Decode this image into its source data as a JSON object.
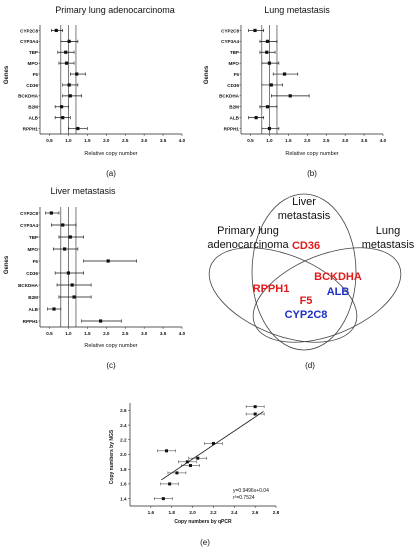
{
  "panel_letters": {
    "a": "(a)",
    "b": "(b)",
    "c": "(c)",
    "d": "(d)",
    "e": "(e)"
  },
  "chart_data": [
    {
      "id": "a",
      "type": "scatter",
      "title": "Primary lung adenocarcinoma",
      "xlabel": "Relative copy number",
      "ylabel": "Genes",
      "xlim": [
        0.25,
        4.0
      ],
      "xticks": [
        "0.5",
        "1.0",
        "1.5",
        "2.0",
        "2.5",
        "3.0",
        "3.5",
        "4.0"
      ],
      "reference_lines": [
        0.8,
        1.0,
        1.2
      ],
      "categories": [
        "CYP2C8",
        "CYP3A4",
        "TBP",
        "MPO",
        "F5",
        "CD36",
        "BCKDHA",
        "B2M",
        "ALB",
        "RPPH1"
      ],
      "mean": [
        0.68,
        1.02,
        0.93,
        0.95,
        1.22,
        1.02,
        1.05,
        0.82,
        0.85,
        1.25
      ],
      "err_low": [
        0.55,
        0.8,
        0.72,
        0.75,
        1.05,
        0.85,
        0.85,
        0.65,
        0.65,
        1.0
      ],
      "err_high": [
        0.85,
        1.25,
        1.15,
        1.15,
        1.45,
        1.25,
        1.35,
        1.0,
        1.05,
        1.5
      ],
      "grid": false
    },
    {
      "id": "b",
      "type": "scatter",
      "title": "Lung metastasis",
      "xlabel": "Relative copy number",
      "ylabel": "Genes",
      "xlim": [
        0.25,
        4.0
      ],
      "xticks": [
        "0.5",
        "1.0",
        "1.5",
        "2.0",
        "2.5",
        "3.0",
        "3.5",
        "4.0"
      ],
      "reference_lines": [
        0.8,
        1.0,
        1.2
      ],
      "categories": [
        "CYP2C8",
        "CYP3A4",
        "TBP",
        "MPO",
        "F5",
        "CD36",
        "BCKDHA",
        "B2M",
        "ALB",
        "RPPH1"
      ],
      "mean": [
        0.62,
        0.95,
        0.93,
        1.0,
        1.4,
        1.05,
        1.55,
        0.95,
        0.65,
        1.0
      ],
      "err_low": [
        0.45,
        0.75,
        0.75,
        0.8,
        1.1,
        0.8,
        1.05,
        0.75,
        0.45,
        0.8
      ],
      "err_high": [
        0.85,
        1.2,
        1.15,
        1.25,
        1.75,
        1.35,
        2.05,
        1.2,
        0.85,
        1.25
      ],
      "grid": false
    },
    {
      "id": "c",
      "type": "scatter",
      "title": "Liver metastasis",
      "xlabel": "Relative copy number",
      "ylabel": "Genes",
      "xlim": [
        0.25,
        4.0
      ],
      "xticks": [
        "0.5",
        "1.0",
        "1.5",
        "2.0",
        "2.5",
        "3.0",
        "3.5",
        "4.0"
      ],
      "reference_lines": [
        0.8,
        1.0,
        1.2
      ],
      "categories": [
        "CYP2C8",
        "CYP3A4",
        "TBP",
        "MPO",
        "F5",
        "CD36",
        "BCKDHA",
        "B2M",
        "ALB",
        "RPPH1"
      ],
      "mean": [
        0.55,
        0.85,
        1.05,
        0.9,
        2.05,
        1.0,
        1.1,
        1.15,
        0.62,
        1.85
      ],
      "err_low": [
        0.4,
        0.55,
        0.75,
        0.6,
        1.4,
        0.65,
        0.7,
        0.75,
        0.45,
        1.35
      ],
      "err_high": [
        0.75,
        1.2,
        1.4,
        1.25,
        2.8,
        1.4,
        1.6,
        1.6,
        0.8,
        2.4
      ],
      "grid": false
    },
    {
      "id": "e",
      "type": "scatter",
      "title": "",
      "xlabel": "Copy numbers by qPCR",
      "ylabel": "Copy numbers by NGS",
      "xlim": [
        1.4,
        2.8
      ],
      "ylim": [
        1.3,
        2.7
      ],
      "xticks": [
        "1.6",
        "1.8",
        "2.0",
        "2.2",
        "2.4",
        "2.6",
        "2.8"
      ],
      "yticks": [
        "1.4",
        "1.6",
        "1.8",
        "2.0",
        "2.2",
        "2.4",
        "2.6"
      ],
      "x": [
        1.72,
        1.78,
        1.85,
        1.95,
        1.98,
        2.05,
        2.2,
        2.6,
        2.6,
        1.75
      ],
      "y": [
        1.4,
        1.6,
        1.75,
        1.9,
        1.85,
        1.95,
        2.15,
        2.55,
        2.65,
        2.05
      ],
      "fit": {
        "slope": 0.9496,
        "intercept": 0.04
      },
      "annotations": [
        "y=0.9496x+0.04",
        "r²=0.7524"
      ],
      "grid": false
    }
  ],
  "venn": {
    "sets": [
      {
        "label_line1": "Primary lung",
        "label_line2": "adenocarcinoma"
      },
      {
        "label_line1": "Liver",
        "label_line2": "metastasis"
      },
      {
        "label_line1": "Lung",
        "label_line2": "metastasis"
      }
    ],
    "genes": {
      "cd36": "CD36",
      "rpph1": "RPPH1",
      "bckdha": "BCKDHA",
      "alb": "ALB",
      "f5": "F5",
      "cyp2c8": "CYP2C8"
    },
    "colors": {
      "red": "#e11b1b",
      "blue": "#1d2fc4"
    }
  }
}
